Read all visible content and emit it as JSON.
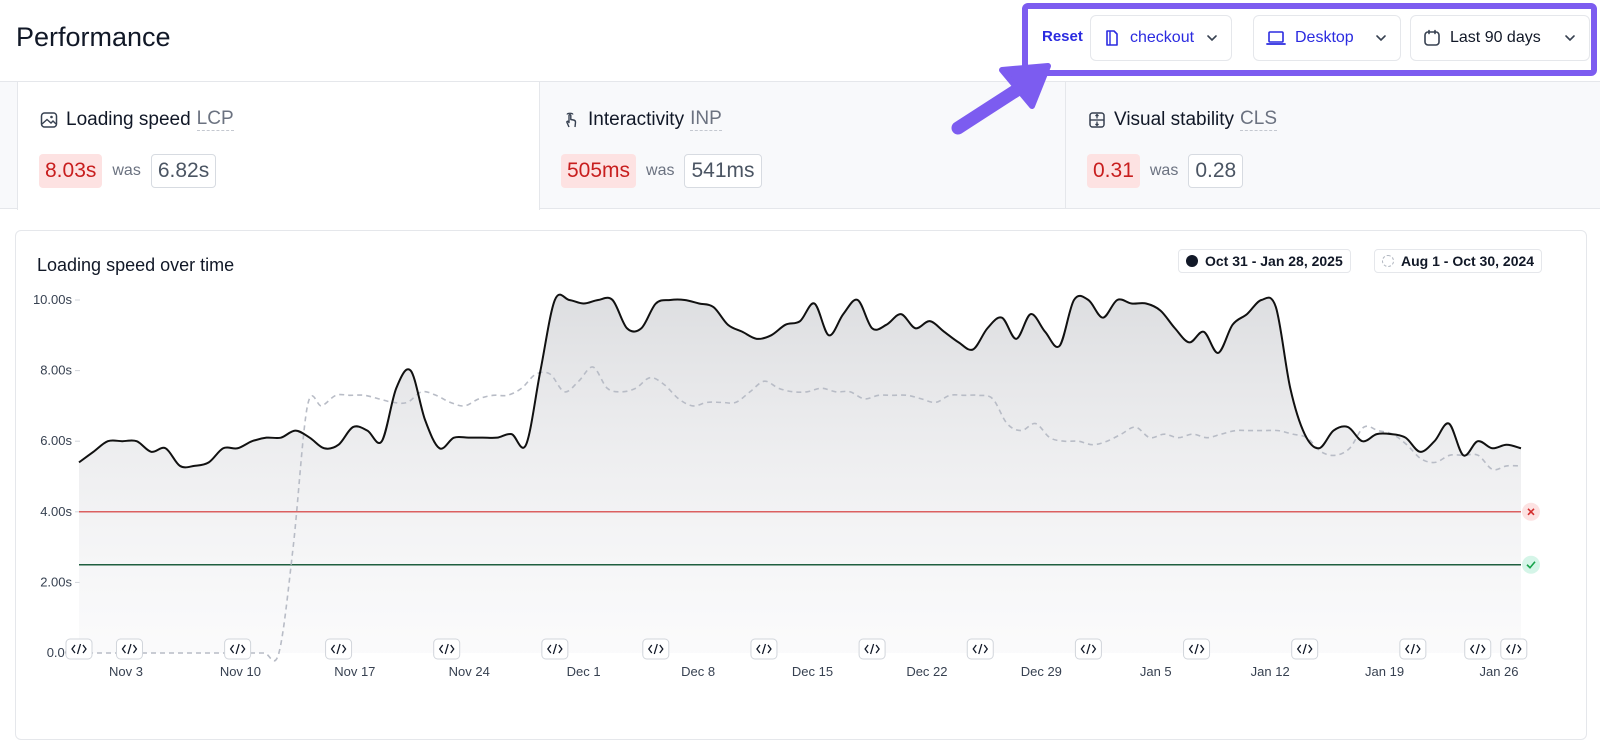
{
  "header": {
    "title": "Performance",
    "reset_label": "Reset",
    "page_filter": "checkout",
    "device_filter": "Desktop",
    "range_filter": "Last 90 days"
  },
  "metrics": [
    {
      "name": "Loading speed",
      "abbr": "LCP",
      "value": "8.03s",
      "was_label": "was",
      "previous": "6.82s",
      "icon": "image-icon"
    },
    {
      "name": "Interactivity",
      "abbr": "INP",
      "value": "505ms",
      "was_label": "was",
      "previous": "541ms",
      "icon": "pointer-hand-icon"
    },
    {
      "name": "Visual stability",
      "abbr": "CLS",
      "value": "0.31",
      "was_label": "was",
      "previous": "0.28",
      "icon": "layout-shift-icon"
    }
  ],
  "colors": {
    "accent": "#2b2be0",
    "highlight": "#7c5cf0",
    "bad": "#c81e1e",
    "bad_bg": "#fde2e2",
    "poor_threshold": "#d32f2f",
    "good_threshold": "#1f5f3f"
  },
  "chart": {
    "title": "Loading speed over time",
    "legend": [
      {
        "label": "Oct 31 - Jan 28, 2025",
        "style": "solid"
      },
      {
        "label": "Aug 1 - Oct 30, 2024",
        "style": "dashed"
      }
    ]
  },
  "chart_data": {
    "type": "area",
    "title": "Loading speed over time",
    "y_unit": "s",
    "ylim": [
      0,
      10
    ],
    "yticks": [
      "0.00",
      "2.00s",
      "4.00s",
      "6.00s",
      "8.00s",
      "10.00s"
    ],
    "xticks": [
      "Nov 3",
      "Nov 10",
      "Nov 17",
      "Nov 24",
      "Dec 1",
      "Dec 8",
      "Dec 15",
      "Dec 22",
      "Dec 29",
      "Jan 5",
      "Jan 12",
      "Jan 19",
      "Jan 26"
    ],
    "thresholds": [
      {
        "value": 4.0,
        "kind": "poor"
      },
      {
        "value": 2.5,
        "kind": "good"
      }
    ],
    "series": [
      {
        "name": "Oct 31 - Jan 28, 2025",
        "style": "solid",
        "values": [
          5.4,
          5.7,
          6.0,
          6.0,
          6.0,
          5.7,
          5.8,
          5.3,
          5.3,
          5.4,
          5.8,
          5.8,
          6.0,
          6.1,
          6.1,
          6.3,
          6.1,
          5.8,
          5.9,
          6.4,
          6.3,
          6.0,
          7.5,
          8.0,
          6.6,
          5.8,
          6.1,
          6.1,
          6.1,
          6.1,
          6.2,
          5.9,
          8.0,
          10.0,
          10.0,
          9.9,
          10.0,
          10.0,
          9.2,
          9.2,
          9.9,
          10.0,
          10.0,
          9.9,
          9.8,
          9.3,
          9.1,
          8.9,
          9.0,
          9.3,
          9.4,
          9.9,
          9.0,
          9.6,
          10.0,
          9.2,
          9.3,
          9.6,
          9.2,
          9.4,
          9.1,
          8.8,
          8.6,
          9.2,
          9.5,
          8.9,
          9.6,
          9.1,
          8.7,
          10.0,
          10.0,
          9.5,
          10.0,
          9.9,
          9.9,
          9.7,
          9.2,
          8.8,
          9.1,
          8.5,
          9.3,
          9.6,
          10.0,
          9.8,
          7.5,
          6.2,
          5.8,
          6.3,
          6.4,
          6.0,
          6.2,
          6.2,
          6.1,
          5.7,
          6.0,
          6.5,
          5.6,
          6.0,
          5.8,
          5.9,
          5.8
        ],
        "extent": [
          0,
          100
        ]
      },
      {
        "name": "Aug 1 - Oct 30, 2024",
        "style": "dashed",
        "values": [
          0.0,
          0.0,
          0.0,
          0.0,
          0.0,
          0.0,
          0.0,
          0.0,
          0.0,
          0.0,
          0.0,
          0.0,
          0.0,
          0.0,
          0.0,
          3.0,
          7.0,
          7.0,
          7.3,
          7.3,
          7.3,
          7.2,
          7.1,
          7.1,
          7.4,
          7.3,
          7.1,
          7.0,
          7.2,
          7.3,
          7.3,
          7.5,
          7.9,
          7.9,
          7.4,
          7.7,
          8.1,
          7.5,
          7.4,
          7.5,
          7.8,
          7.6,
          7.2,
          7.0,
          7.1,
          7.1,
          7.1,
          7.4,
          7.7,
          7.5,
          7.4,
          7.4,
          7.5,
          7.4,
          7.4,
          7.2,
          7.3,
          7.3,
          7.3,
          7.2,
          7.1,
          7.3,
          7.3,
          7.3,
          7.2,
          6.5,
          6.3,
          6.5,
          6.1,
          6.0,
          6.0,
          5.9,
          6.0,
          6.2,
          6.4,
          6.1,
          6.2,
          6.1,
          6.2,
          6.1,
          6.2,
          6.3,
          6.3,
          6.3,
          6.3,
          6.2,
          6.1,
          5.7,
          5.6,
          5.8,
          6.4,
          6.3,
          6.2,
          5.9,
          5.5,
          5.4,
          5.6,
          5.6,
          5.6,
          5.2,
          5.3,
          5.3
        ],
        "extent": [
          0,
          100
        ]
      }
    ],
    "deploy_markers": [
      0,
      3.5,
      11,
      18,
      25.5,
      33,
      40,
      47.5,
      55,
      62.5,
      70,
      77.5,
      85,
      92.5,
      97,
      99.5
    ],
    "grid": false,
    "legend_position": "top-right"
  }
}
